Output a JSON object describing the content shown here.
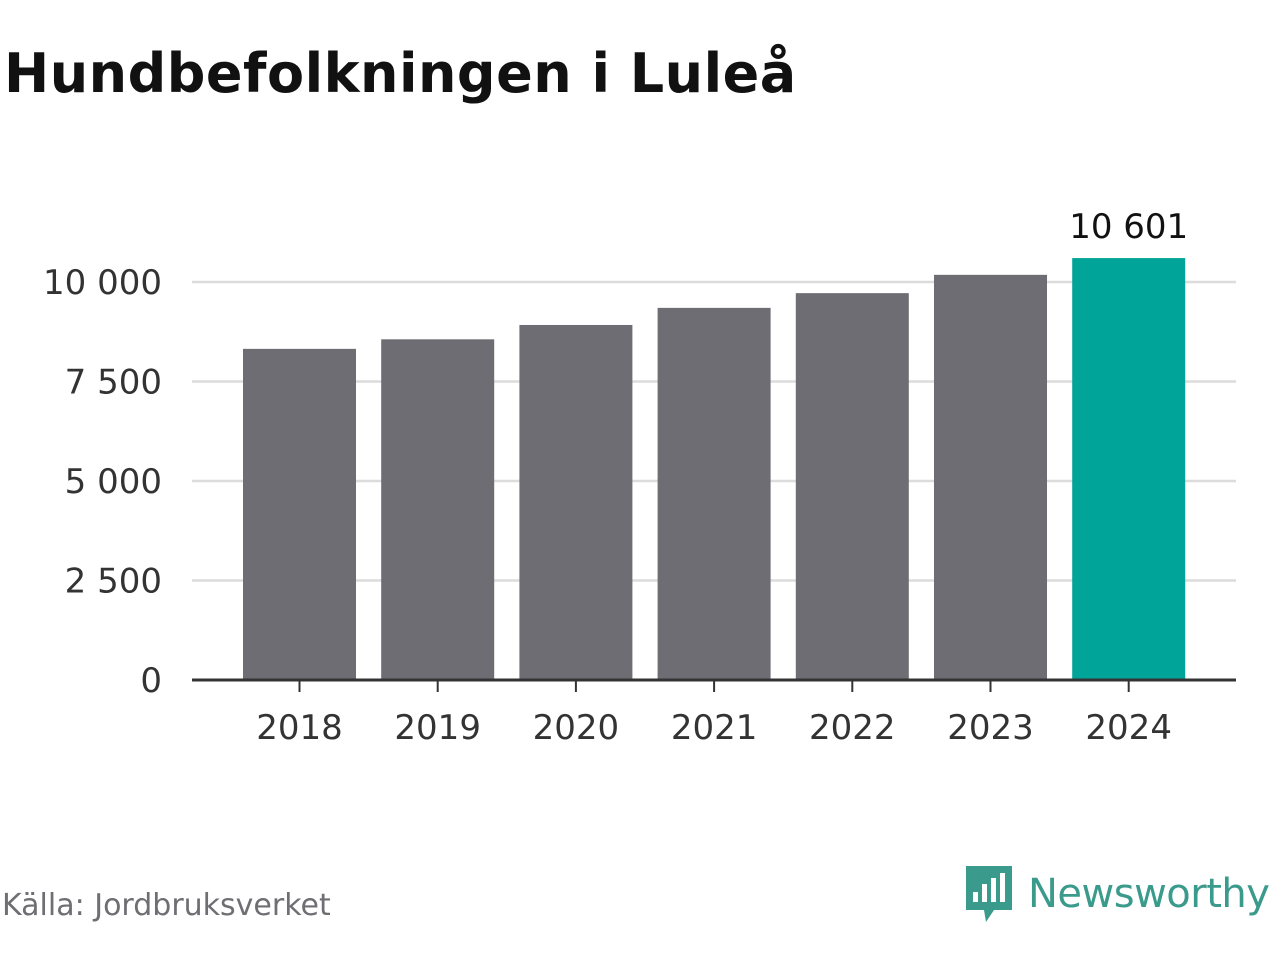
{
  "title": "Hundbefolkningen i Luleå",
  "source": "Källa: Jordbruksverket",
  "brand": {
    "name": "Newsworthy",
    "icon": "newsworthy-logo-icon"
  },
  "colors": {
    "bar": "#6e6d74",
    "highlight": "#00a499",
    "grid": "#dcdcdc",
    "axis": "#333333",
    "text": "#333333"
  },
  "chart_data": {
    "type": "bar",
    "title": "Hundbefolkningen i Luleå",
    "xlabel": "",
    "ylabel": "",
    "categories": [
      "2018",
      "2019",
      "2020",
      "2021",
      "2022",
      "2023",
      "2024"
    ],
    "values": [
      8320,
      8560,
      8920,
      9350,
      9720,
      10180,
      10601
    ],
    "highlight_index": 6,
    "data_labels": [
      {
        "index": 6,
        "text": "10 601"
      }
    ],
    "ylim": [
      0,
      10000
    ],
    "yticks": [
      0,
      2500,
      5000,
      7500,
      10000
    ],
    "ytick_labels": [
      "0",
      "2 500",
      "5 000",
      "7 500",
      "10 000"
    ],
    "grid": true,
    "legend": "none"
  }
}
